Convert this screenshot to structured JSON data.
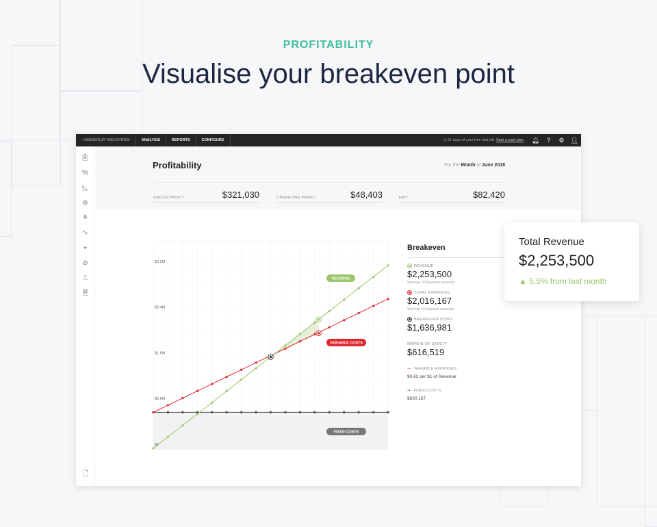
{
  "hero": {
    "eyebrow": "PROFITABILITY",
    "headline": "Visualise your breakeven point"
  },
  "topbar": {
    "company": "‹  VANDERLAY INDUSTRIES",
    "nav": [
      "ANALYSIS",
      "REPORTS",
      "CONFIGURE"
    ],
    "trial_text": "11 days of your free trial left.",
    "trial_link": "Start a paid plan",
    "icons": [
      "clock-icon",
      "bell-icon",
      "help-icon",
      "gear-icon",
      "user-icon"
    ]
  },
  "sidebar": {
    "icons": [
      "clipboard-check-icon",
      "ratio-icon",
      "area-chart-icon",
      "globe-icon",
      "plant-icon",
      "wave-icon",
      "telescope-icon",
      "overlap-icon",
      "step-signal-icon",
      "document-icon"
    ],
    "bottom_icon": "add-document-icon"
  },
  "page": {
    "title": "Profitability",
    "period_prefix": "For the",
    "period_unit": "Month",
    "period_of": "of",
    "period_value": "June 2018"
  },
  "kpis": [
    {
      "label": "GROSS PROFIT",
      "value": "$321,030"
    },
    {
      "label": "OPERATING PROFIT",
      "value": "$48,403"
    },
    {
      "label": "EBIT",
      "value": "$82,420"
    }
  ],
  "breakeven": {
    "title": "Breakeven",
    "revenue": {
      "label": "REVENUE",
      "value": "$2,253,500",
      "link": "View top 10 Revenue accounts"
    },
    "expenses": {
      "label": "TOTAL EXPENSES",
      "value": "$2,016,167",
      "link": "View top 10 Expense accounts"
    },
    "point": {
      "label": "BREAKEVEN POINT",
      "value": "$1,636,981"
    },
    "margin": {
      "label": "MARGIN OF SAFETY",
      "value": "$616,519"
    },
    "variable": {
      "label": "VARIABLE EXPENSES",
      "value": "$0.62 per $1 of Revenue"
    },
    "fixed": {
      "label": "FIXED COSTS",
      "value": "$630,167"
    }
  },
  "card": {
    "title": "Total Revenue",
    "value": "$2,253,500",
    "change": "▲ 5.5% from last month",
    "change_color": "#9cc46a"
  },
  "chart_data": {
    "type": "line",
    "yticks": [
      "$0",
      "$0.8M",
      "$1.6M",
      "$2.4M",
      "$3.2M"
    ],
    "ytick_values": [
      0,
      0.8,
      1.6,
      2.4,
      3.2
    ],
    "ylim": [
      0,
      3.6
    ],
    "unit": "$M",
    "grid": true,
    "x": [
      0,
      1,
      2,
      3,
      4,
      5,
      6,
      7,
      8,
      9,
      10,
      11,
      12,
      13,
      14,
      15,
      16
    ],
    "series": [
      {
        "name": "REVENUE",
        "color": "#9cc46a",
        "values": [
          0,
          0.2,
          0.4,
          0.6,
          0.8,
          1.0,
          1.2,
          1.4,
          1.6,
          1.8,
          2.0,
          2.2,
          2.4,
          2.6,
          2.8,
          3.0,
          3.2
        ]
      },
      {
        "name": "VARIABLE COSTS",
        "color": "#e0262e",
        "values": [
          0.63,
          0.754,
          0.878,
          1.002,
          1.126,
          1.25,
          1.374,
          1.498,
          1.622,
          1.746,
          1.87,
          1.994,
          2.118,
          2.242,
          2.366,
          2.49,
          2.614
        ]
      },
      {
        "name": "FIXED COSTS",
        "color": "#444444",
        "values": [
          0.63,
          0.63,
          0.63,
          0.63,
          0.63,
          0.63,
          0.63,
          0.63,
          0.63,
          0.63,
          0.63,
          0.63,
          0.63,
          0.63,
          0.63,
          0.63,
          0.63
        ]
      }
    ],
    "breakeven_x": 8,
    "current_x": 11.27,
    "current_revenue": 2.2535,
    "current_expenses": 2.016
  }
}
